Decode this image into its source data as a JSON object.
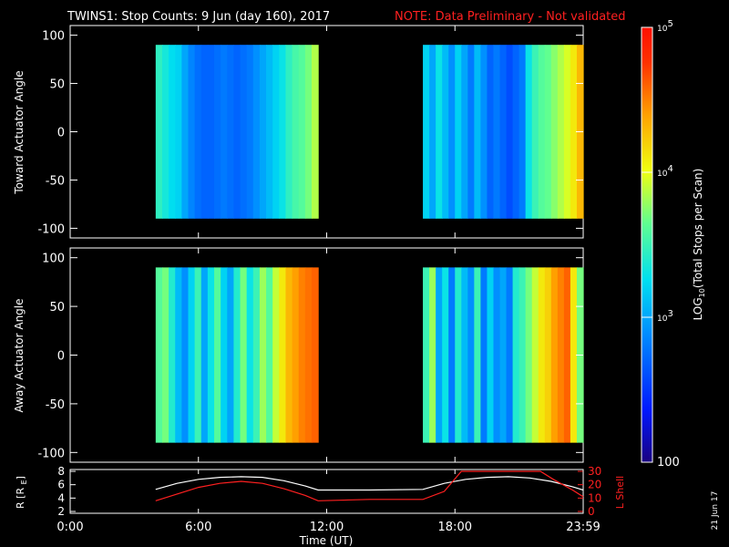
{
  "header": {
    "title": "TWINS1: Stop Counts:  9 Jun (day 160), 2017",
    "note": "NOTE: Data Preliminary - Not validated",
    "note_color": "#ff2020"
  },
  "date_stamp": "21 Jun 17",
  "chart_data": [
    {
      "type": "heatmap",
      "panel": "toward",
      "ylabel": "Toward Actuator Angle",
      "ylim": [
        -110,
        110
      ],
      "yticks": [
        "100",
        "50",
        "0",
        "-50",
        "-100"
      ],
      "ytick_values": [
        100,
        50,
        0,
        -50,
        -100
      ],
      "xlim": [
        0,
        24
      ],
      "blocks": [
        {
          "start_hour": 4.0,
          "end_hour": 11.6,
          "angle_range": [
            -90,
            90
          ],
          "log10_counts_profile": [
            3.45,
            3.35,
            3.25,
            3.2,
            3.0,
            2.85,
            2.75,
            2.7,
            2.7,
            2.75,
            2.8,
            2.75,
            2.7,
            2.75,
            2.8,
            2.9,
            3.0,
            3.1,
            3.2,
            3.3,
            3.45,
            3.55,
            3.6,
            3.7,
            3.85
          ]
        },
        {
          "start_hour": 16.5,
          "end_hour": 24.0,
          "angle_range": [
            -90,
            90
          ],
          "log10_counts_profile": [
            3.2,
            3.0,
            3.3,
            3.1,
            2.9,
            3.2,
            3.0,
            2.8,
            3.1,
            2.9,
            2.7,
            2.8,
            2.7,
            2.6,
            2.7,
            2.8,
            3.3,
            3.5,
            3.6,
            3.65,
            3.75,
            3.85,
            3.95,
            4.1,
            4.3
          ]
        }
      ]
    },
    {
      "type": "heatmap",
      "panel": "away",
      "ylabel": "Away Actuator Angle",
      "ylim": [
        -110,
        110
      ],
      "yticks": [
        "100",
        "50",
        "0",
        "-50",
        "-100"
      ],
      "ytick_values": [
        100,
        50,
        0,
        -50,
        -100
      ],
      "xlim": [
        0,
        24
      ],
      "blocks": [
        {
          "start_hour": 4.0,
          "end_hour": 11.6,
          "angle_range": [
            -90,
            90
          ],
          "log10_counts_profile": [
            3.6,
            3.7,
            3.4,
            3.1,
            2.9,
            3.2,
            3.5,
            3.0,
            3.3,
            3.6,
            3.2,
            3.0,
            3.4,
            3.7,
            3.3,
            3.5,
            3.8,
            3.6,
            3.9,
            4.1,
            4.3,
            4.4,
            4.5,
            4.55,
            4.6
          ]
        },
        {
          "start_hour": 16.5,
          "end_hour": 24.0,
          "angle_range": [
            -90,
            90
          ],
          "log10_counts_profile": [
            3.5,
            3.8,
            3.0,
            3.3,
            2.8,
            3.4,
            3.1,
            2.9,
            3.5,
            2.8,
            3.2,
            2.9,
            3.0,
            2.8,
            3.4,
            3.5,
            3.7,
            3.9,
            4.1,
            4.2,
            4.4,
            4.5,
            4.6,
            4.1,
            3.7
          ]
        }
      ]
    },
    {
      "type": "line",
      "panel": "orbit",
      "ylabel": "R [RE]",
      "ylim": [
        2,
        8
      ],
      "yticks": [
        "8",
        "6",
        "4",
        "2"
      ],
      "ytick_values": [
        8,
        6,
        4,
        2
      ],
      "y2label": "L Shell",
      "y2lim": [
        0,
        30
      ],
      "y2ticks": [
        "30",
        "20",
        "10",
        "0"
      ],
      "y2tick_values": [
        30,
        20,
        10,
        0
      ],
      "y2_color": "#ff2020",
      "xlim": [
        0,
        24
      ],
      "xlabel": "Time (UT)",
      "xticks": [
        "0:00",
        "6:00",
        "12:00",
        "18:00",
        "23:59"
      ],
      "xtick_values": [
        0,
        6,
        12,
        18,
        24
      ],
      "series": [
        {
          "color": "#ffffff",
          "x": [
            4.0,
            5.0,
            6.0,
            7.0,
            8.0,
            9.0,
            10.0,
            11.0,
            11.6,
            14.0,
            16.5,
            17.5,
            18.5,
            19.5,
            20.5,
            21.5,
            22.5,
            23.5,
            24.0
          ],
          "y": [
            5.3,
            6.2,
            6.8,
            7.1,
            7.2,
            7.1,
            6.6,
            5.8,
            5.2,
            5.2,
            5.3,
            6.2,
            6.8,
            7.1,
            7.2,
            7.0,
            6.5,
            5.7,
            5.2
          ]
        },
        {
          "color": "#ff2020",
          "axis": "y2",
          "x": [
            4.0,
            5.0,
            6.0,
            7.0,
            8.0,
            9.0,
            10.0,
            11.0,
            11.6,
            14.0,
            16.5,
            17.5,
            18.3,
            22.0,
            22.6,
            23.5,
            24.0
          ],
          "y": [
            8,
            13,
            18,
            21,
            22.5,
            21,
            17,
            12,
            8,
            9,
            9,
            15,
            30,
            30,
            24,
            16,
            11
          ]
        }
      ]
    }
  ],
  "colorbar": {
    "label": "LOG10(Total Stops per Scan)",
    "label_main": "LOG",
    "label_sub": "10",
    "label_rest": "(Total Stops per Scan)",
    "ticks": [
      {
        "base": "10",
        "exp": "5",
        "value": 5
      },
      {
        "base": "10",
        "exp": "4",
        "value": 4
      },
      {
        "base": "10",
        "exp": "3",
        "value": 3
      },
      {
        "base": "100",
        "exp": "",
        "value": 2
      }
    ],
    "min": 2,
    "max": 5
  }
}
